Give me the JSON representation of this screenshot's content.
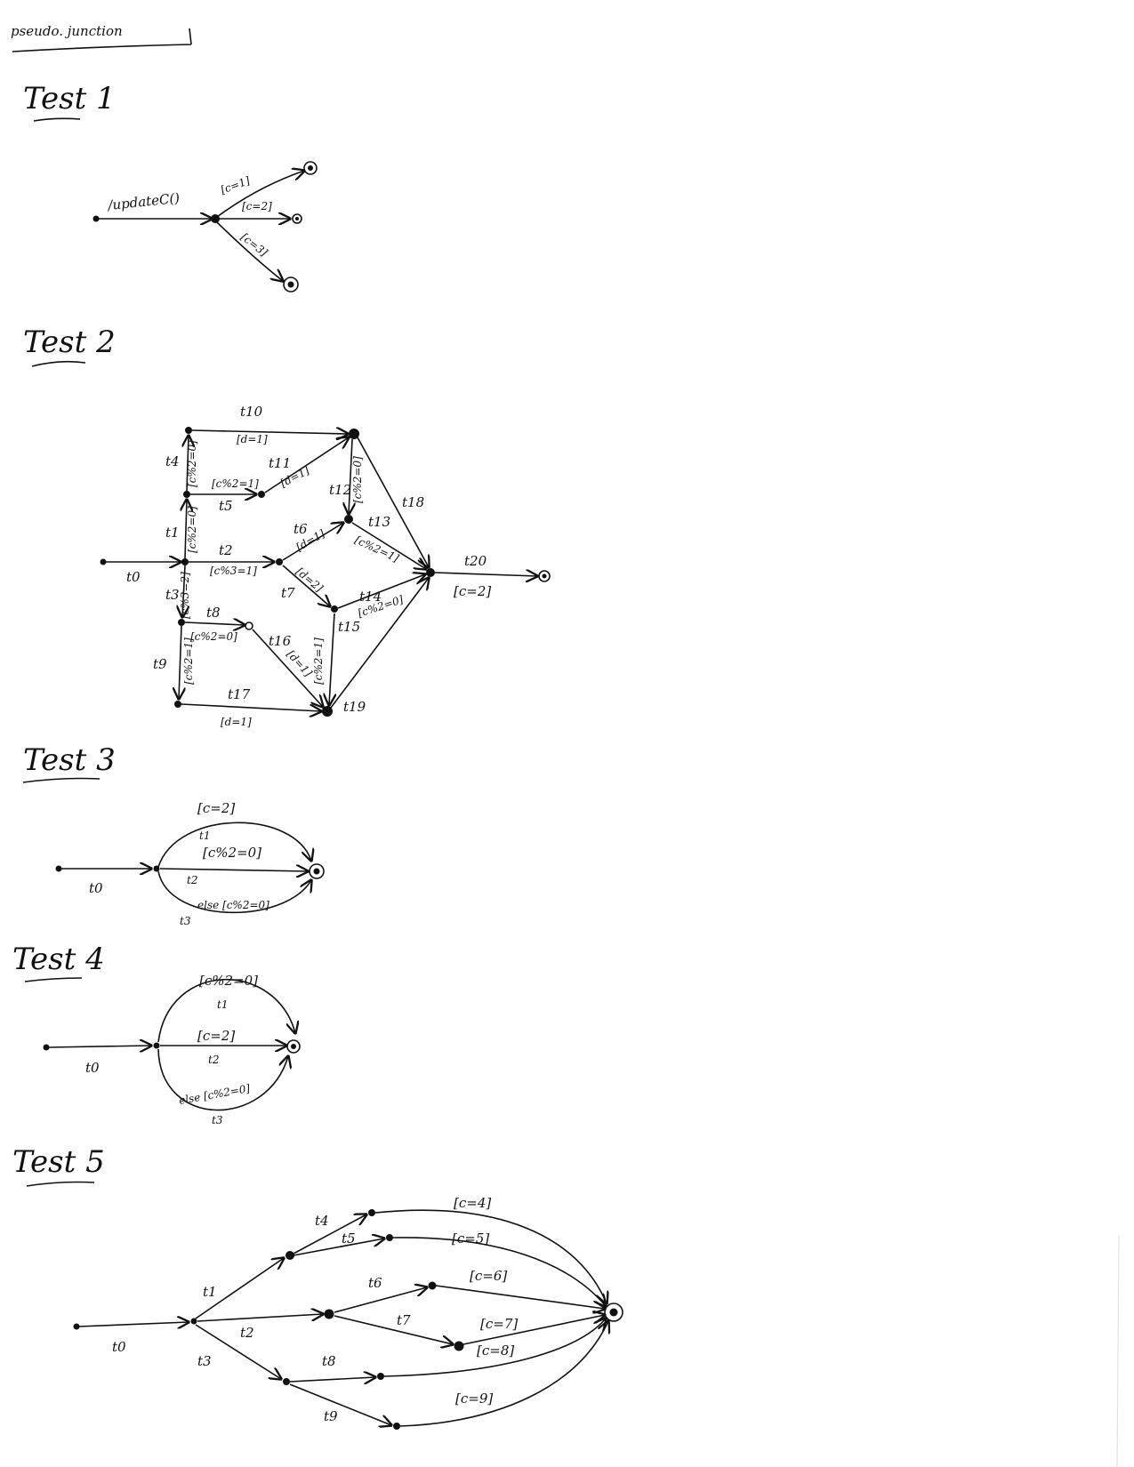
{
  "header": {
    "fragment": "pseudo. junction"
  },
  "tests": {
    "t1": {
      "title": "Test 1",
      "labels": {
        "update": "/updateC()",
        "g1": "[c=1]",
        "g2": "[c=2]",
        "g3": "[c=3]"
      }
    },
    "t2": {
      "title": "Test 2",
      "labels": {
        "t0": "t0",
        "t1": "t1",
        "t2": "t2",
        "t3": "t3",
        "t4": "t4",
        "t5": "t5",
        "t6": "t6",
        "t7": "t7",
        "t8": "t8",
        "t9": "t9",
        "t10": "t10",
        "t11": "t11",
        "t12": "t12",
        "t13": "t13",
        "t14": "t14",
        "t15": "t15",
        "t16": "t16",
        "t17": "t17",
        "t18": "t18",
        "t19": "t19",
        "t20": "t20",
        "g_t10": "[d=1]",
        "g_t11": "[d=1]",
        "g_t5": "[c%2=1]",
        "g_t4": "[c%2=0]",
        "g_t1": "[c%2=0]",
        "g_t2": "[c%3=1]",
        "g_t3": "[c%3=2]",
        "g_t6": "[d=1]",
        "g_t7": "[d=2]",
        "g_t12": "[c%2=0]",
        "g_t13": "[c%2=1]",
        "g_t14": "[c%2=0]",
        "g_t8": "[c%2=0]",
        "g_t9": "[c%2=1]",
        "g_t16": "[d=1]",
        "g_t15": "[c%2=1]",
        "g_t17": "[d=1]",
        "g_t20": "[c=2]"
      }
    },
    "t3": {
      "title": "Test 3",
      "labels": {
        "t0": "t0",
        "g_top": "[c=2]",
        "t1": "t1",
        "g_mid": "[c%2=0]",
        "t2": "t2",
        "g_bot": "else [c%2=0]",
        "t3": "t3"
      }
    },
    "t4": {
      "title": "Test 4",
      "labels": {
        "t0": "t0",
        "g_top": "[c%2=0]",
        "t1": "t1",
        "g_mid": "[c=2]",
        "t2": "t2",
        "g_bot": "else [c%2=0]",
        "t3": "t3"
      }
    },
    "t5": {
      "title": "Test 5",
      "labels": {
        "t0": "t0",
        "t1": "t1",
        "t2": "t2",
        "t3": "t3",
        "t4": "t4",
        "t5": "t5",
        "t6": "t6",
        "t7": "t7",
        "t8": "t8",
        "t9": "t9",
        "g4": "[c=4]",
        "g5": "[c=5]",
        "g6": "[c=6]",
        "g7": "[c=7]",
        "g8": "[c=8]",
        "g9": "[c=9]"
      }
    }
  }
}
